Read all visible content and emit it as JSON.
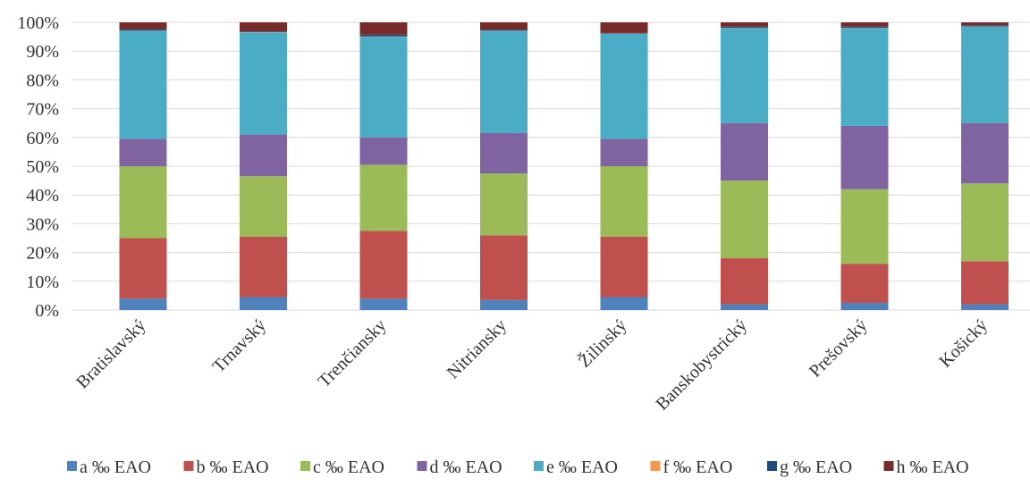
{
  "chart_data": {
    "type": "bar",
    "stacked": true,
    "percent": true,
    "title": "",
    "xlabel": "",
    "ylabel": "",
    "ylim": [
      0,
      100
    ],
    "y_ticks": [
      "0%",
      "10%",
      "20%",
      "30%",
      "40%",
      "50%",
      "60%",
      "70%",
      "80%",
      "90%",
      "100%"
    ],
    "grid": true,
    "legend_position": "bottom",
    "categories": [
      "Bratislavský",
      "Trnavský",
      "Trenčiansky",
      "Nitriansky",
      "Žilinský",
      "Banskobystrický",
      "Prešovský",
      "Košický"
    ],
    "series": [
      {
        "name": "a ‰ EAO",
        "color": "#4f81bd",
        "values": [
          4.0,
          4.5,
          4.0,
          3.5,
          4.5,
          2.0,
          2.5,
          2.0
        ]
      },
      {
        "name": "b ‰ EAO",
        "color": "#c0504d",
        "values": [
          21.0,
          21.0,
          23.5,
          22.5,
          21.0,
          16.0,
          13.5,
          15.0
        ]
      },
      {
        "name": "c ‰ EAO",
        "color": "#9bbb59",
        "values": [
          25.0,
          21.0,
          23.0,
          21.5,
          24.5,
          27.0,
          26.0,
          27.0
        ]
      },
      {
        "name": "d ‰ EAO",
        "color": "#8064a2",
        "values": [
          9.5,
          14.5,
          9.5,
          14.0,
          9.5,
          20.0,
          22.0,
          21.0
        ]
      },
      {
        "name": "e ‰ EAO",
        "color": "#4bacc6",
        "values": [
          37.5,
          35.5,
          35.0,
          35.5,
          36.5,
          33.0,
          34.0,
          33.5
        ]
      },
      {
        "name": "f ‰ EAO",
        "color": "#f79646",
        "values": [
          0.1,
          0.1,
          0.1,
          0.1,
          0.1,
          0.1,
          0.1,
          0.1
        ]
      },
      {
        "name": "g ‰ EAO",
        "color": "#1f497d",
        "values": [
          0.6,
          0.2,
          0.6,
          0.4,
          0.2,
          0.4,
          0.4,
          0.4
        ]
      },
      {
        "name": "h ‰ EAO",
        "color": "#772c2a",
        "values": [
          2.3,
          3.2,
          4.3,
          2.5,
          3.7,
          1.5,
          1.5,
          1.0
        ]
      }
    ]
  }
}
